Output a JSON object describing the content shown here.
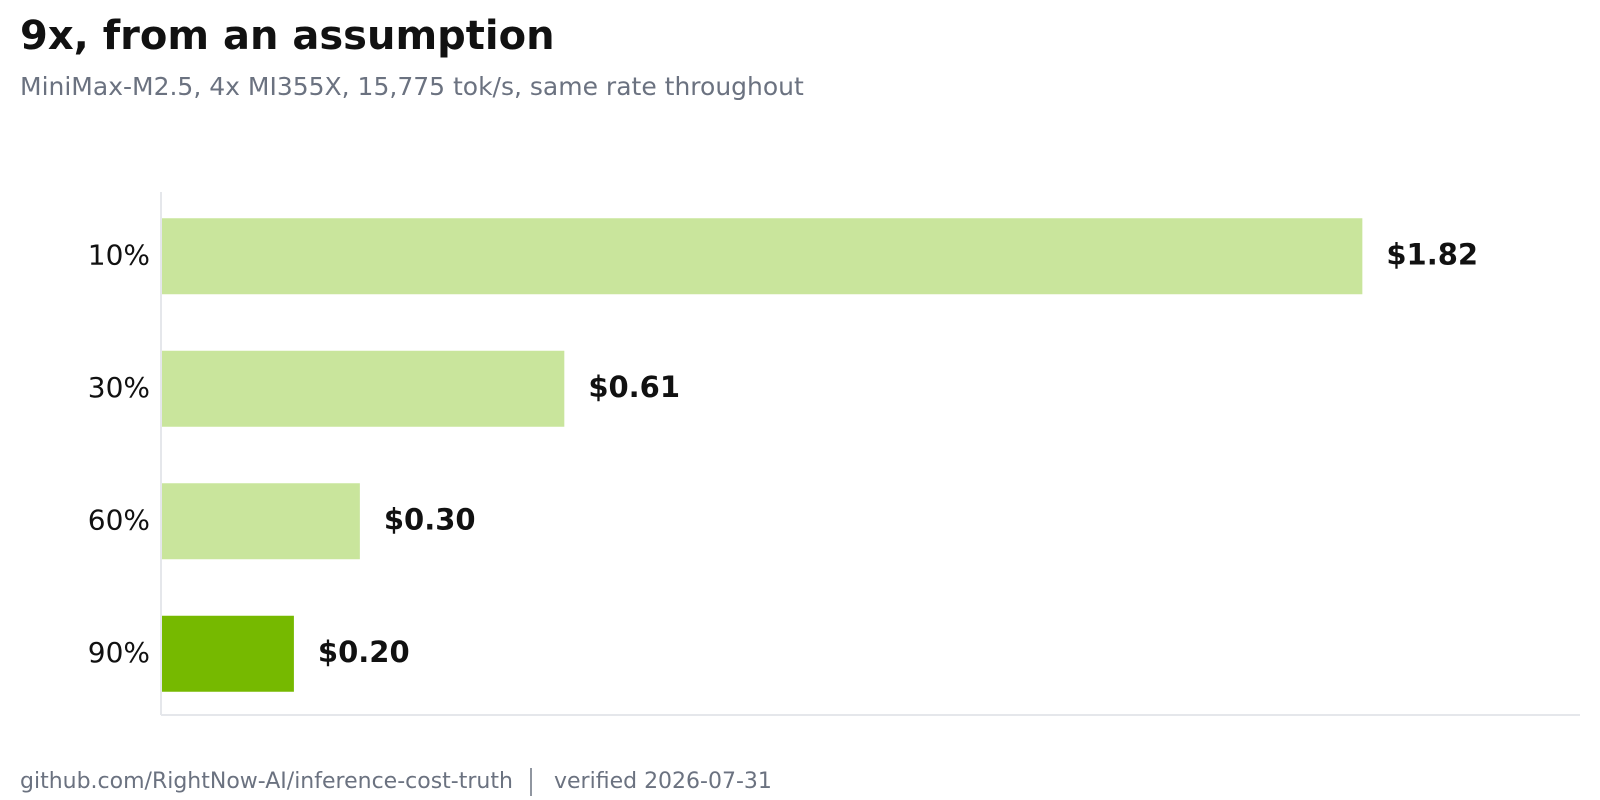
{
  "chart_data": {
    "type": "bar",
    "orientation": "horizontal",
    "title": "9x, from an assumption",
    "subtitle": "MiniMax-M2.5, 4x MI355X, 15,775 tok/s, same rate throughout",
    "categories": [
      "10%",
      "30%",
      "60%",
      "90%"
    ],
    "values": [
      1.82,
      0.61,
      0.3,
      0.2
    ],
    "value_labels": [
      "$1.82",
      "$0.61",
      "$0.30",
      "$0.20"
    ],
    "colors": [
      "#c9e59c",
      "#c9e59c",
      "#c9e59c",
      "#76b900"
    ],
    "xlim": [
      0,
      2.15
    ],
    "grid": false
  },
  "footer": {
    "source": "github.com/RightNow-AI/inference-cost-truth",
    "verified": "verified 2026-07-31"
  }
}
